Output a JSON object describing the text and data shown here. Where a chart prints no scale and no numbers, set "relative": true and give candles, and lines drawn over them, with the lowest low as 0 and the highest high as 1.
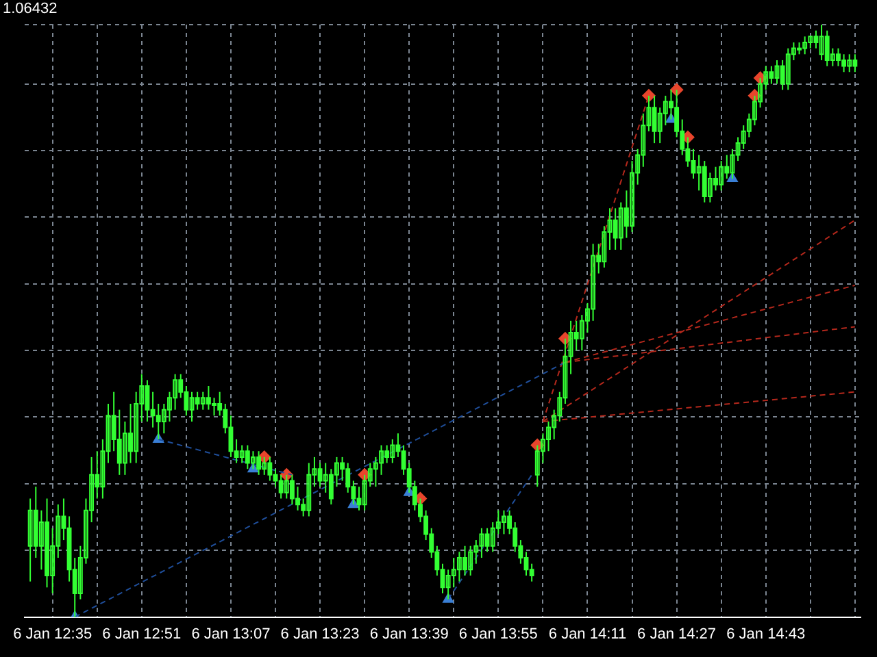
{
  "chart_data": {
    "type": "candlestick",
    "relative": true,
    "color": "#33ff33",
    "grid": true,
    "legend": false,
    "annotations": [
      "1.06432"
    ],
    "xlim": [
      "--01-06T12:30",
      "--01-06T15:00"
    ],
    "xticks": [
      {
        "value": "--01-06T12:35",
        "label": "6 Jan 12:35"
      },
      {
        "value": "--01-06T12:43",
        "label": null
      },
      {
        "value": "--01-06T12:51",
        "label": "6 Jan 12:51"
      },
      {
        "value": "--01-06T12:59",
        "label": null
      },
      {
        "value": "--01-06T13:07",
        "label": "6 Jan 13:07"
      },
      {
        "value": "--01-06T13:15",
        "label": null
      },
      {
        "value": "--01-06T13:23",
        "label": "6 Jan 13:23"
      },
      {
        "value": "--01-06T13:31",
        "label": null
      },
      {
        "value": "--01-06T13:39",
        "label": "6 Jan 13:39"
      },
      {
        "value": "--01-06T13:47",
        "label": null
      },
      {
        "value": "--01-06T13:55",
        "label": "6 Jan 13:55"
      },
      {
        "value": "--01-06T14:03",
        "label": null
      },
      {
        "value": "--01-06T14:11",
        "label": "6 Jan 14:11"
      },
      {
        "value": "--01-06T14:19",
        "label": null
      },
      {
        "value": "--01-06T14:27",
        "label": "6 Jan 14:27"
      },
      {
        "value": "--01-06T14:35",
        "label": null
      },
      {
        "value": "--01-06T14:43",
        "label": "6 Jan 14:43"
      },
      {
        "value": "--01-06T14:51",
        "label": null
      },
      {
        "value": "--01-06T14:59",
        "label": null
      }
    ],
    "x": [
      "--01-06T12:31",
      "--01-06T12:32",
      "--01-06T12:33",
      "--01-06T12:34",
      "--01-06T12:35",
      "--01-06T12:36",
      "--01-06T12:37",
      "--01-06T12:38",
      "--01-06T12:39",
      "--01-06T12:40",
      "--01-06T12:41",
      "--01-06T12:42",
      "--01-06T12:43",
      "--01-06T12:44",
      "--01-06T12:45",
      "--01-06T12:46",
      "--01-06T12:47",
      "--01-06T12:48",
      "--01-06T12:49",
      "--01-06T12:50",
      "--01-06T12:51",
      "--01-06T12:52",
      "--01-06T12:53",
      "--01-06T12:54",
      "--01-06T12:55",
      "--01-06T12:56",
      "--01-06T12:57",
      "--01-06T12:58",
      "--01-06T12:59",
      "--01-06T13:00",
      "--01-06T13:01",
      "--01-06T13:02",
      "--01-06T13:03",
      "--01-06T13:04",
      "--01-06T13:05",
      "--01-06T13:06",
      "--01-06T13:07",
      "--01-06T13:08",
      "--01-06T13:09",
      "--01-06T13:10",
      "--01-06T13:11",
      "--01-06T13:12",
      "--01-06T13:13",
      "--01-06T13:14",
      "--01-06T13:15",
      "--01-06T13:16",
      "--01-06T13:17",
      "--01-06T13:18",
      "--01-06T13:19",
      "--01-06T13:20",
      "--01-06T13:21",
      "--01-06T13:22",
      "--01-06T13:23",
      "--01-06T13:24",
      "--01-06T13:25",
      "--01-06T13:26",
      "--01-06T13:27",
      "--01-06T13:28",
      "--01-06T13:29",
      "--01-06T13:30",
      "--01-06T13:31",
      "--01-06T13:32",
      "--01-06T13:33",
      "--01-06T13:34",
      "--01-06T13:35",
      "--01-06T13:36",
      "--01-06T13:37",
      "--01-06T13:38",
      "--01-06T13:39",
      "--01-06T13:40",
      "--01-06T13:41",
      "--01-06T13:42",
      "--01-06T13:43",
      "--01-06T13:44",
      "--01-06T13:45",
      "--01-06T13:46",
      "--01-06T13:47",
      "--01-06T13:48",
      "--01-06T13:49",
      "--01-06T13:50",
      "--01-06T13:51",
      "--01-06T13:52",
      "--01-06T13:53",
      "--01-06T13:54",
      "--01-06T13:55",
      "--01-06T13:56",
      "--01-06T13:57",
      "--01-06T13:58",
      "--01-06T13:59",
      "--01-06T14:00",
      "--01-06T14:01",
      "--01-06T14:02",
      "--01-06T14:03",
      "--01-06T14:04",
      "--01-06T14:05",
      "--01-06T14:06",
      "--01-06T14:07",
      "--01-06T14:08",
      "--01-06T14:09",
      "--01-06T14:10",
      "--01-06T14:11",
      "--01-06T14:12",
      "--01-06T14:13",
      "--01-06T14:14",
      "--01-06T14:15",
      "--01-06T14:16",
      "--01-06T14:17",
      "--01-06T14:18",
      "--01-06T14:19",
      "--01-06T14:20",
      "--01-06T14:21",
      "--01-06T14:22",
      "--01-06T14:23",
      "--01-06T14:24",
      "--01-06T14:25",
      "--01-06T14:26",
      "--01-06T14:27",
      "--01-06T14:28",
      "--01-06T14:29",
      "--01-06T14:30",
      "--01-06T14:31",
      "--01-06T14:32",
      "--01-06T14:33",
      "--01-06T14:34",
      "--01-06T14:35",
      "--01-06T14:36",
      "--01-06T14:37",
      "--01-06T14:38",
      "--01-06T14:39",
      "--01-06T14:40",
      "--01-06T14:41",
      "--01-06T14:42",
      "--01-06T14:43",
      "--01-06T14:44",
      "--01-06T14:45",
      "--01-06T14:46",
      "--01-06T14:47",
      "--01-06T14:48",
      "--01-06T14:49",
      "--01-06T14:50",
      "--01-06T14:51",
      "--01-06T14:52",
      "--01-06T14:53",
      "--01-06T14:54",
      "--01-06T14:55",
      "--01-06T14:56",
      "--01-06T14:57",
      "--01-06T14:58",
      "--01-06T14:59"
    ],
    "ohlc": [
      [
        0.12,
        0.2,
        0.06,
        0.18
      ],
      [
        0.18,
        0.22,
        0.1,
        0.12
      ],
      [
        0.12,
        0.18,
        0.08,
        0.16
      ],
      [
        0.16,
        0.2,
        0.05,
        0.07
      ],
      [
        0.07,
        0.15,
        0.04,
        0.12
      ],
      [
        0.12,
        0.19,
        0.1,
        0.17
      ],
      [
        0.17,
        0.2,
        0.13,
        0.15
      ],
      [
        0.15,
        0.17,
        0.06,
        0.08
      ],
      [
        0.08,
        0.1,
        0.0,
        0.04
      ],
      [
        0.04,
        0.12,
        0.03,
        0.1
      ],
      [
        0.1,
        0.2,
        0.09,
        0.18
      ],
      [
        0.18,
        0.27,
        0.16,
        0.24
      ],
      [
        0.24,
        0.28,
        0.2,
        0.22
      ],
      [
        0.22,
        0.3,
        0.2,
        0.28
      ],
      [
        0.28,
        0.36,
        0.26,
        0.34
      ],
      [
        0.34,
        0.38,
        0.28,
        0.3
      ],
      [
        0.3,
        0.35,
        0.24,
        0.26
      ],
      [
        0.26,
        0.33,
        0.24,
        0.31
      ],
      [
        0.31,
        0.36,
        0.26,
        0.28
      ],
      [
        0.28,
        0.38,
        0.26,
        0.36
      ],
      [
        0.36,
        0.41,
        0.33,
        0.39
      ],
      [
        0.39,
        0.4,
        0.33,
        0.35
      ],
      [
        0.35,
        0.38,
        0.32,
        0.34
      ],
      [
        0.34,
        0.36,
        0.3,
        0.33
      ],
      [
        0.33,
        0.36,
        0.31,
        0.35
      ],
      [
        0.35,
        0.38,
        0.33,
        0.37
      ],
      [
        0.37,
        0.41,
        0.35,
        0.4
      ],
      [
        0.4,
        0.41,
        0.37,
        0.38
      ],
      [
        0.38,
        0.39,
        0.34,
        0.35
      ],
      [
        0.35,
        0.38,
        0.33,
        0.37
      ],
      [
        0.37,
        0.38,
        0.35,
        0.36
      ],
      [
        0.36,
        0.38,
        0.35,
        0.37
      ],
      [
        0.37,
        0.39,
        0.35,
        0.36
      ],
      [
        0.36,
        0.37,
        0.34,
        0.36
      ],
      [
        0.36,
        0.38,
        0.34,
        0.35
      ],
      [
        0.35,
        0.36,
        0.31,
        0.32
      ],
      [
        0.32,
        0.34,
        0.27,
        0.28
      ],
      [
        0.28,
        0.3,
        0.26,
        0.27
      ],
      [
        0.27,
        0.29,
        0.26,
        0.28
      ],
      [
        0.28,
        0.29,
        0.25,
        0.26
      ],
      [
        0.26,
        0.28,
        0.25,
        0.27
      ],
      [
        0.27,
        0.28,
        0.24,
        0.25
      ],
      [
        0.25,
        0.27,
        0.24,
        0.26
      ],
      [
        0.26,
        0.27,
        0.23,
        0.24
      ],
      [
        0.24,
        0.25,
        0.22,
        0.23
      ],
      [
        0.23,
        0.24,
        0.2,
        0.21
      ],
      [
        0.21,
        0.24,
        0.2,
        0.23
      ],
      [
        0.23,
        0.24,
        0.19,
        0.2
      ],
      [
        0.2,
        0.22,
        0.18,
        0.19
      ],
      [
        0.19,
        0.2,
        0.17,
        0.18
      ],
      [
        0.18,
        0.26,
        0.17,
        0.24
      ],
      [
        0.24,
        0.27,
        0.22,
        0.25
      ],
      [
        0.25,
        0.26,
        0.22,
        0.23
      ],
      [
        0.23,
        0.26,
        0.21,
        0.24
      ],
      [
        0.24,
        0.25,
        0.19,
        0.2
      ],
      [
        0.24,
        0.27,
        0.22,
        0.26
      ],
      [
        0.26,
        0.27,
        0.23,
        0.25
      ],
      [
        0.25,
        0.26,
        0.21,
        0.22
      ],
      [
        0.22,
        0.23,
        0.19,
        0.2
      ],
      [
        0.2,
        0.22,
        0.18,
        0.19
      ],
      [
        0.19,
        0.24,
        0.18,
        0.23
      ],
      [
        0.23,
        0.26,
        0.22,
        0.25
      ],
      [
        0.25,
        0.27,
        0.22,
        0.26
      ],
      [
        0.26,
        0.29,
        0.24,
        0.28
      ],
      [
        0.28,
        0.29,
        0.26,
        0.27
      ],
      [
        0.27,
        0.3,
        0.26,
        0.29
      ],
      [
        0.29,
        0.31,
        0.27,
        0.28
      ],
      [
        0.28,
        0.29,
        0.24,
        0.25
      ],
      [
        0.25,
        0.26,
        0.21,
        0.22
      ],
      [
        0.22,
        0.23,
        0.18,
        0.19
      ],
      [
        0.19,
        0.2,
        0.16,
        0.17
      ],
      [
        0.17,
        0.18,
        0.13,
        0.14
      ],
      [
        0.14,
        0.15,
        0.1,
        0.11
      ],
      [
        0.11,
        0.12,
        0.07,
        0.08
      ],
      [
        0.08,
        0.09,
        0.04,
        0.05
      ],
      [
        0.05,
        0.08,
        0.03,
        0.07
      ],
      [
        0.07,
        0.1,
        0.05,
        0.08
      ],
      [
        0.08,
        0.11,
        0.06,
        0.1
      ],
      [
        0.1,
        0.12,
        0.07,
        0.08
      ],
      [
        0.08,
        0.12,
        0.07,
        0.11
      ],
      [
        0.11,
        0.13,
        0.09,
        0.12
      ],
      [
        0.12,
        0.15,
        0.1,
        0.14
      ],
      [
        0.14,
        0.15,
        0.11,
        0.12
      ],
      [
        0.12,
        0.16,
        0.11,
        0.15
      ],
      [
        0.15,
        0.18,
        0.14,
        0.16
      ],
      [
        0.16,
        0.18,
        0.14,
        0.17
      ],
      [
        0.17,
        0.18,
        0.14,
        0.15
      ],
      [
        0.15,
        0.16,
        0.11,
        0.12
      ],
      [
        0.12,
        0.13,
        0.09,
        0.1
      ],
      [
        0.1,
        0.11,
        0.07,
        0.08
      ],
      [
        0.08,
        0.09,
        0.06,
        0.07
      ],
      [
        0.24,
        0.29,
        0.22,
        0.28
      ],
      [
        0.28,
        0.31,
        0.26,
        0.3
      ],
      [
        0.3,
        0.33,
        0.28,
        0.32
      ],
      [
        0.32,
        0.35,
        0.3,
        0.34
      ],
      [
        0.34,
        0.38,
        0.33,
        0.37
      ],
      [
        0.37,
        0.47,
        0.36,
        0.44
      ],
      [
        0.44,
        0.5,
        0.41,
        0.48
      ],
      [
        0.48,
        0.5,
        0.45,
        0.47
      ],
      [
        0.47,
        0.51,
        0.45,
        0.5
      ],
      [
        0.5,
        0.53,
        0.48,
        0.52
      ],
      [
        0.52,
        0.63,
        0.5,
        0.61
      ],
      [
        0.61,
        0.63,
        0.58,
        0.6
      ],
      [
        0.6,
        0.66,
        0.59,
        0.65
      ],
      [
        0.65,
        0.69,
        0.62,
        0.67
      ],
      [
        0.67,
        0.69,
        0.62,
        0.64
      ],
      [
        0.64,
        0.7,
        0.62,
        0.69
      ],
      [
        0.69,
        0.72,
        0.64,
        0.66
      ],
      [
        0.66,
        0.77,
        0.65,
        0.75
      ],
      [
        0.75,
        0.79,
        0.73,
        0.78
      ],
      [
        0.78,
        0.85,
        0.76,
        0.83
      ],
      [
        0.83,
        0.88,
        0.82,
        0.86
      ],
      [
        0.86,
        0.88,
        0.8,
        0.82
      ],
      [
        0.82,
        0.86,
        0.8,
        0.85
      ],
      [
        0.85,
        0.88,
        0.83,
        0.87
      ],
      [
        0.87,
        0.89,
        0.84,
        0.86
      ],
      [
        0.86,
        0.89,
        0.81,
        0.82
      ],
      [
        0.82,
        0.84,
        0.78,
        0.79
      ],
      [
        0.79,
        0.81,
        0.76,
        0.77
      ],
      [
        0.77,
        0.79,
        0.74,
        0.75
      ],
      [
        0.75,
        0.78,
        0.72,
        0.76
      ],
      [
        0.76,
        0.77,
        0.7,
        0.71
      ],
      [
        0.71,
        0.75,
        0.7,
        0.74
      ],
      [
        0.74,
        0.76,
        0.72,
        0.73
      ],
      [
        0.73,
        0.77,
        0.72,
        0.76
      ],
      [
        0.76,
        0.78,
        0.74,
        0.75
      ],
      [
        0.75,
        0.79,
        0.74,
        0.78
      ],
      [
        0.78,
        0.81,
        0.77,
        0.8
      ],
      [
        0.8,
        0.83,
        0.79,
        0.82
      ],
      [
        0.82,
        0.85,
        0.81,
        0.84
      ],
      [
        0.84,
        0.88,
        0.83,
        0.87
      ],
      [
        0.87,
        0.91,
        0.86,
        0.9
      ],
      [
        0.9,
        0.93,
        0.89,
        0.92
      ],
      [
        0.92,
        0.93,
        0.9,
        0.91
      ],
      [
        0.91,
        0.94,
        0.9,
        0.93
      ],
      [
        0.93,
        0.94,
        0.89,
        0.9
      ],
      [
        0.9,
        0.96,
        0.89,
        0.95
      ],
      [
        0.95,
        0.97,
        0.94,
        0.96
      ],
      [
        0.96,
        0.97,
        0.95,
        0.96
      ],
      [
        0.96,
        0.98,
        0.95,
        0.97
      ],
      [
        0.97,
        0.98,
        0.96,
        0.98
      ],
      [
        0.98,
        0.99,
        0.96,
        0.97
      ],
      [
        0.95,
        1.0,
        0.94,
        0.98
      ],
      [
        0.98,
        0.99,
        0.93,
        0.94
      ],
      [
        0.94,
        0.96,
        0.93,
        0.95
      ],
      [
        0.95,
        0.96,
        0.93,
        0.94
      ],
      [
        0.94,
        0.95,
        0.92,
        0.93
      ],
      [
        0.93,
        0.95,
        0.92,
        0.94
      ],
      [
        0.94,
        0.95,
        0.92,
        0.93
      ]
    ],
    "series": [
      {
        "type": "line",
        "color": "#1f4e9a",
        "line_style": "dashed",
        "x": [
          "--01-06T12:39",
          "--01-06T14:07"
        ],
        "values": [
          0.0,
          0.43
        ]
      },
      {
        "type": "line",
        "color": "#1f4e9a",
        "line_style": "dashed",
        "x": [
          "--01-06T12:54",
          "--01-06T13:18"
        ],
        "values": [
          0.3,
          0.24
        ]
      },
      {
        "type": "line",
        "color": "#1f4e9a",
        "line_style": "dashed",
        "x": [
          "--01-06T13:46",
          "--01-06T14:01"
        ],
        "values": [
          0.03,
          0.24
        ]
      },
      {
        "type": "line",
        "color": "#b5281c",
        "line_style": "dashed",
        "x": [
          "--01-06T14:03",
          "--01-06T14:59"
        ],
        "values": [
          0.33,
          0.67
        ]
      },
      {
        "type": "line",
        "color": "#b5281c",
        "line_style": "dashed",
        "x": [
          "--01-06T14:07",
          "--01-06T14:59"
        ],
        "values": [
          0.43,
          0.56
        ]
      },
      {
        "type": "line",
        "color": "#b5281c",
        "line_style": "dashed",
        "x": [
          "--01-06T14:07",
          "--01-06T14:59"
        ],
        "values": [
          0.43,
          0.49
        ]
      },
      {
        "type": "line",
        "color": "#b5281c",
        "line_style": "dashed",
        "x": [
          "--01-06T14:03",
          "--01-06T14:59"
        ],
        "values": [
          0.33,
          0.38
        ]
      },
      {
        "type": "line",
        "color": "#b5281c",
        "line_style": "dashed",
        "x": [
          "--01-06T14:03",
          "--01-06T14:22"
        ],
        "values": [
          0.33,
          0.88
        ]
      },
      {
        "type": "scatter",
        "color": "#3a7fd5",
        "marker": "triangle",
        "x": [
          "--01-06T12:39",
          "--01-06T12:54",
          "--01-06T13:11",
          "--01-06T13:29",
          "--01-06T13:39",
          "--01-06T13:46",
          "--01-06T14:26",
          "--01-06T14:37"
        ],
        "values": [
          0.0,
          0.3,
          0.25,
          0.19,
          0.21,
          0.03,
          0.84,
          0.74
        ]
      },
      {
        "type": "scatter",
        "color": "#e8452c",
        "marker": "diamond",
        "x": [
          "--01-06T13:13",
          "--01-06T13:17",
          "--01-06T13:31",
          "--01-06T13:41",
          "--01-06T14:02",
          "--01-06T14:07",
          "--01-06T14:22",
          "--01-06T14:27",
          "--01-06T14:29",
          "--01-06T14:41",
          "--01-06T14:42"
        ],
        "values": [
          0.27,
          0.24,
          0.24,
          0.2,
          0.29,
          0.47,
          0.88,
          0.89,
          0.81,
          0.88,
          0.91
        ]
      }
    ]
  }
}
